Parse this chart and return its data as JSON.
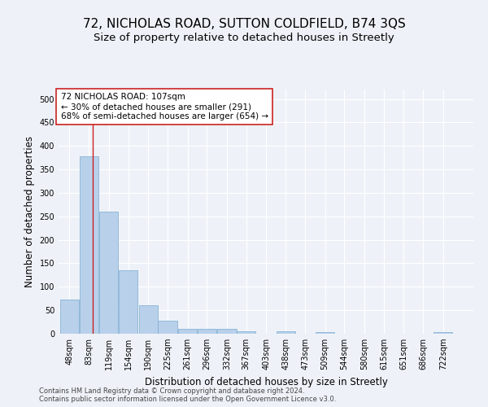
{
  "title": "72, NICHOLAS ROAD, SUTTON COLDFIELD, B74 3QS",
  "subtitle": "Size of property relative to detached houses in Streetly",
  "xlabel": "Distribution of detached houses by size in Streetly",
  "ylabel": "Number of detached properties",
  "footer_line1": "Contains HM Land Registry data © Crown copyright and database right 2024.",
  "footer_line2": "Contains public sector information licensed under the Open Government Licence v3.0.",
  "bar_edges": [
    48,
    83,
    119,
    154,
    190,
    225,
    261,
    296,
    332,
    367,
    403,
    438,
    473,
    509,
    544,
    580,
    615,
    651,
    686,
    722,
    757
  ],
  "bar_heights": [
    72,
    378,
    260,
    136,
    60,
    28,
    11,
    10,
    10,
    6,
    0,
    5,
    0,
    4,
    0,
    0,
    0,
    0,
    0,
    4
  ],
  "bar_color": "#b8d0ea",
  "bar_edge_color": "#7aaad0",
  "property_size": 107,
  "property_label": "72 NICHOLAS ROAD: 107sqm",
  "annotation_line1": "← 30% of detached houses are smaller (291)",
  "annotation_line2": "68% of semi-detached houses are larger (654) →",
  "red_line_color": "#cc2222",
  "annotation_box_color": "#ffffff",
  "annotation_box_edge_color": "#cc2222",
  "ylim": [
    0,
    520
  ],
  "yticks": [
    0,
    50,
    100,
    150,
    200,
    250,
    300,
    350,
    400,
    450,
    500
  ],
  "bg_color": "#eef2f8",
  "plot_bg_color": "#eef2f8",
  "grid_color": "#ffffff",
  "title_fontsize": 11,
  "subtitle_fontsize": 9.5,
  "tick_fontsize": 7,
  "label_fontsize": 8.5,
  "annotation_fontsize": 7.5,
  "footer_fontsize": 6
}
